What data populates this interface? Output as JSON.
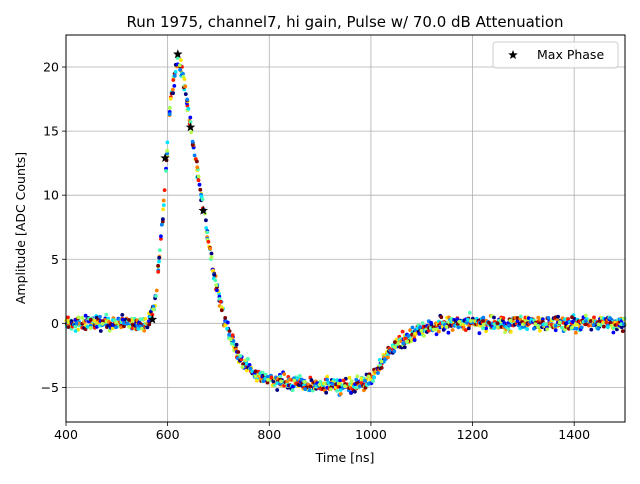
{
  "chart_data": {
    "type": "scatter",
    "title": "Run 1975, channel7, hi gain, Pulse w/ 70.0 dB Attenuation",
    "xlabel": "Time [ns]",
    "ylabel": "Amplitude [ADC Counts]",
    "xlim": [
      400,
      1500
    ],
    "ylim": [
      -7.7,
      22.5
    ],
    "xticks": [
      400,
      600,
      800,
      1000,
      1200,
      1400
    ],
    "yticks": [
      -5,
      0,
      5,
      10,
      15,
      20
    ],
    "grid": true,
    "legend": {
      "position": "top-right",
      "entries": [
        "Max Phase"
      ]
    },
    "colormap": [
      "#00007f",
      "#0000ff",
      "#007fff",
      "#00e5ff",
      "#4dffb3",
      "#b3ff4d",
      "#ffe600",
      "#ff8000",
      "#ff1a00",
      "#7f0000"
    ],
    "series": [
      {
        "name": "Max Phase",
        "marker": "star",
        "color": "#000000",
        "points": [
          {
            "x": 570,
            "y": 0.3
          },
          {
            "x": 595,
            "y": 12.9
          },
          {
            "x": 620,
            "y": 21.0
          },
          {
            "x": 645,
            "y": 15.3
          },
          {
            "x": 670,
            "y": 8.8
          }
        ]
      },
      {
        "name": "",
        "marker": "dot",
        "sampling_period_ns": 25,
        "phases": 10,
        "phase_step_ns": 2.5,
        "profile": [
          {
            "x": 400,
            "y": 0
          },
          {
            "x": 560,
            "y": 0
          },
          {
            "x": 575,
            "y": 1.5
          },
          {
            "x": 590,
            "y": 8
          },
          {
            "x": 605,
            "y": 17
          },
          {
            "x": 618,
            "y": 20.5
          },
          {
            "x": 630,
            "y": 19.5
          },
          {
            "x": 650,
            "y": 14
          },
          {
            "x": 670,
            "y": 9
          },
          {
            "x": 690,
            "y": 4
          },
          {
            "x": 710,
            "y": 0.5
          },
          {
            "x": 725,
            "y": -1.2
          },
          {
            "x": 745,
            "y": -2.8
          },
          {
            "x": 770,
            "y": -4
          },
          {
            "x": 800,
            "y": -4.4
          },
          {
            "x": 900,
            "y": -4.8
          },
          {
            "x": 980,
            "y": -4.8
          },
          {
            "x": 1000,
            "y": -4.3
          },
          {
            "x": 1030,
            "y": -2.5
          },
          {
            "x": 1060,
            "y": -1.4
          },
          {
            "x": 1100,
            "y": -0.5
          },
          {
            "x": 1150,
            "y": 0
          },
          {
            "x": 1500,
            "y": 0
          }
        ],
        "noise": 0.55
      }
    ]
  }
}
